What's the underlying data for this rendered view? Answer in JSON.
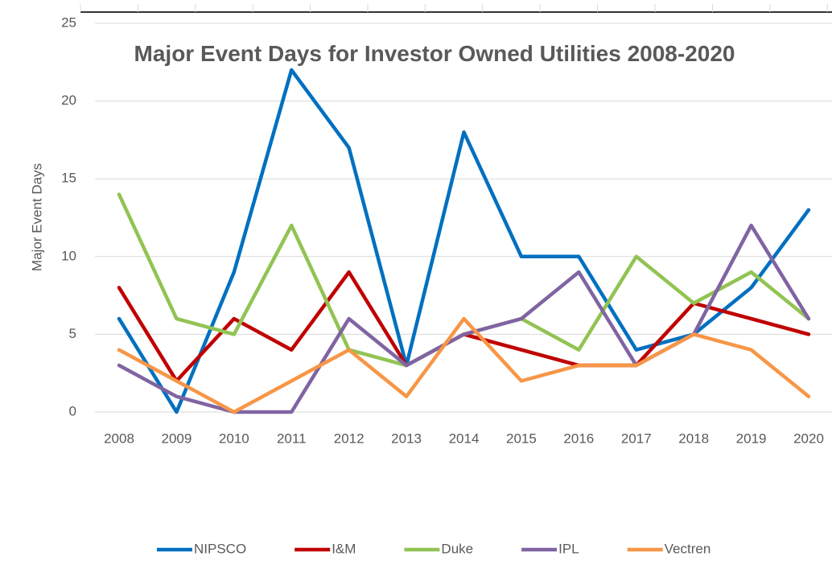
{
  "chart_data": {
    "type": "line",
    "title": "Major Event Days for Investor Owned Utilities 2008-2020",
    "y_label": "Major Event Days",
    "categories": [
      "2008",
      "2009",
      "2010",
      "2011",
      "2012",
      "2013",
      "2014",
      "2015",
      "2016",
      "2017",
      "2018",
      "2019",
      "2020"
    ],
    "series": [
      {
        "name": "NIPSCO",
        "color": "#0070c0",
        "values": [
          6,
          0,
          9,
          22,
          17,
          3,
          18,
          10,
          10,
          4,
          5,
          8,
          13
        ]
      },
      {
        "name": "I&M",
        "color": "#c00000",
        "values": [
          8,
          2,
          6,
          4,
          9,
          3,
          5,
          4,
          3,
          3,
          7,
          6,
          5
        ]
      },
      {
        "name": "Duke",
        "color": "#92c353",
        "values": [
          14,
          6,
          5,
          12,
          4,
          3,
          5,
          6,
          4,
          10,
          7,
          9,
          6
        ]
      },
      {
        "name": "IPL",
        "color": "#8064a2",
        "values": [
          3,
          1,
          0,
          0,
          6,
          3,
          5,
          6,
          9,
          3,
          5,
          12,
          6
        ]
      },
      {
        "name": "Vectren",
        "color": "#f79646",
        "values": [
          4,
          2,
          0,
          2,
          4,
          1,
          6,
          2,
          3,
          3,
          5,
          4,
          1
        ]
      }
    ],
    "ylim": [
      0,
      25
    ],
    "yticks": [
      0,
      5,
      10,
      15,
      20,
      25
    ],
    "grid": true,
    "legend": "bottom"
  }
}
